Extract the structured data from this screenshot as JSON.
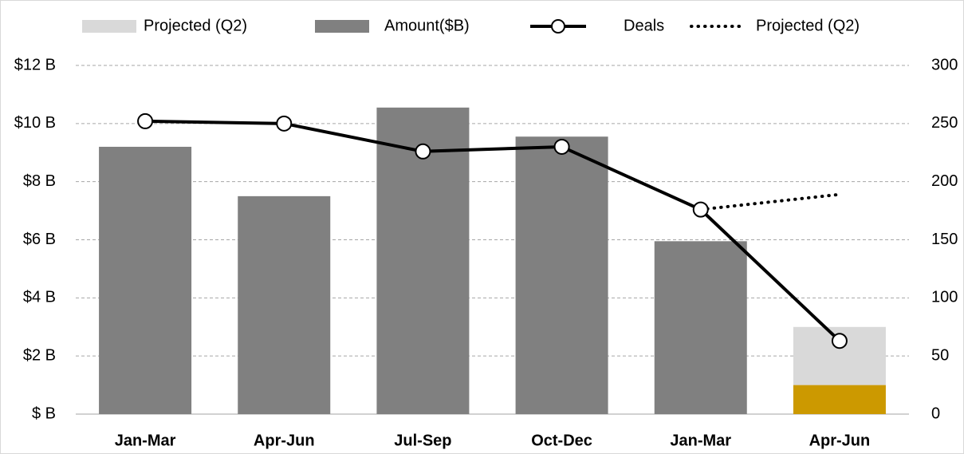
{
  "chart_data": {
    "type": "bar-line",
    "categories": [
      "Jan-Mar",
      "Apr-Jun",
      "Jul-Sep",
      "Oct-Dec",
      "Jan-Mar",
      "Apr-Jun"
    ],
    "series": [
      {
        "name": "Projected (Q2)",
        "kind": "bar",
        "color": "#d9d9d9",
        "values": [
          null,
          null,
          null,
          null,
          null,
          2.0
        ]
      },
      {
        "name": "Amount($B)",
        "kind": "bar",
        "color": "#808080",
        "colors": [
          "#808080",
          "#808080",
          "#808080",
          "#808080",
          "#808080",
          "#cc9900"
        ],
        "values": [
          9.2,
          7.5,
          10.55,
          9.55,
          5.95,
          1.0
        ]
      },
      {
        "name": "Deals",
        "kind": "line",
        "axis": "y2",
        "color": "#000000",
        "values": [
          252,
          250,
          226,
          230,
          176,
          63
        ]
      },
      {
        "name": "Projected (Q2)",
        "kind": "line",
        "axis": "y2",
        "dashed": true,
        "color": "#000000",
        "values": [
          null,
          null,
          null,
          null,
          176,
          189
        ]
      }
    ],
    "ylim": [
      0,
      12
    ],
    "yticks": [
      {
        "value": 0,
        "label": "$ B"
      },
      {
        "value": 2,
        "label": "$2 B"
      },
      {
        "value": 4,
        "label": "$4 B"
      },
      {
        "value": 6,
        "label": "$6 B"
      },
      {
        "value": 8,
        "label": "$8 B"
      },
      {
        "value": 10,
        "label": "$10 B"
      },
      {
        "value": 12,
        "label": "$12 B"
      }
    ],
    "y2lim": [
      0,
      300
    ],
    "y2ticks": [
      0,
      50,
      100,
      150,
      200,
      250,
      300
    ],
    "grid": true,
    "legend": "top"
  }
}
